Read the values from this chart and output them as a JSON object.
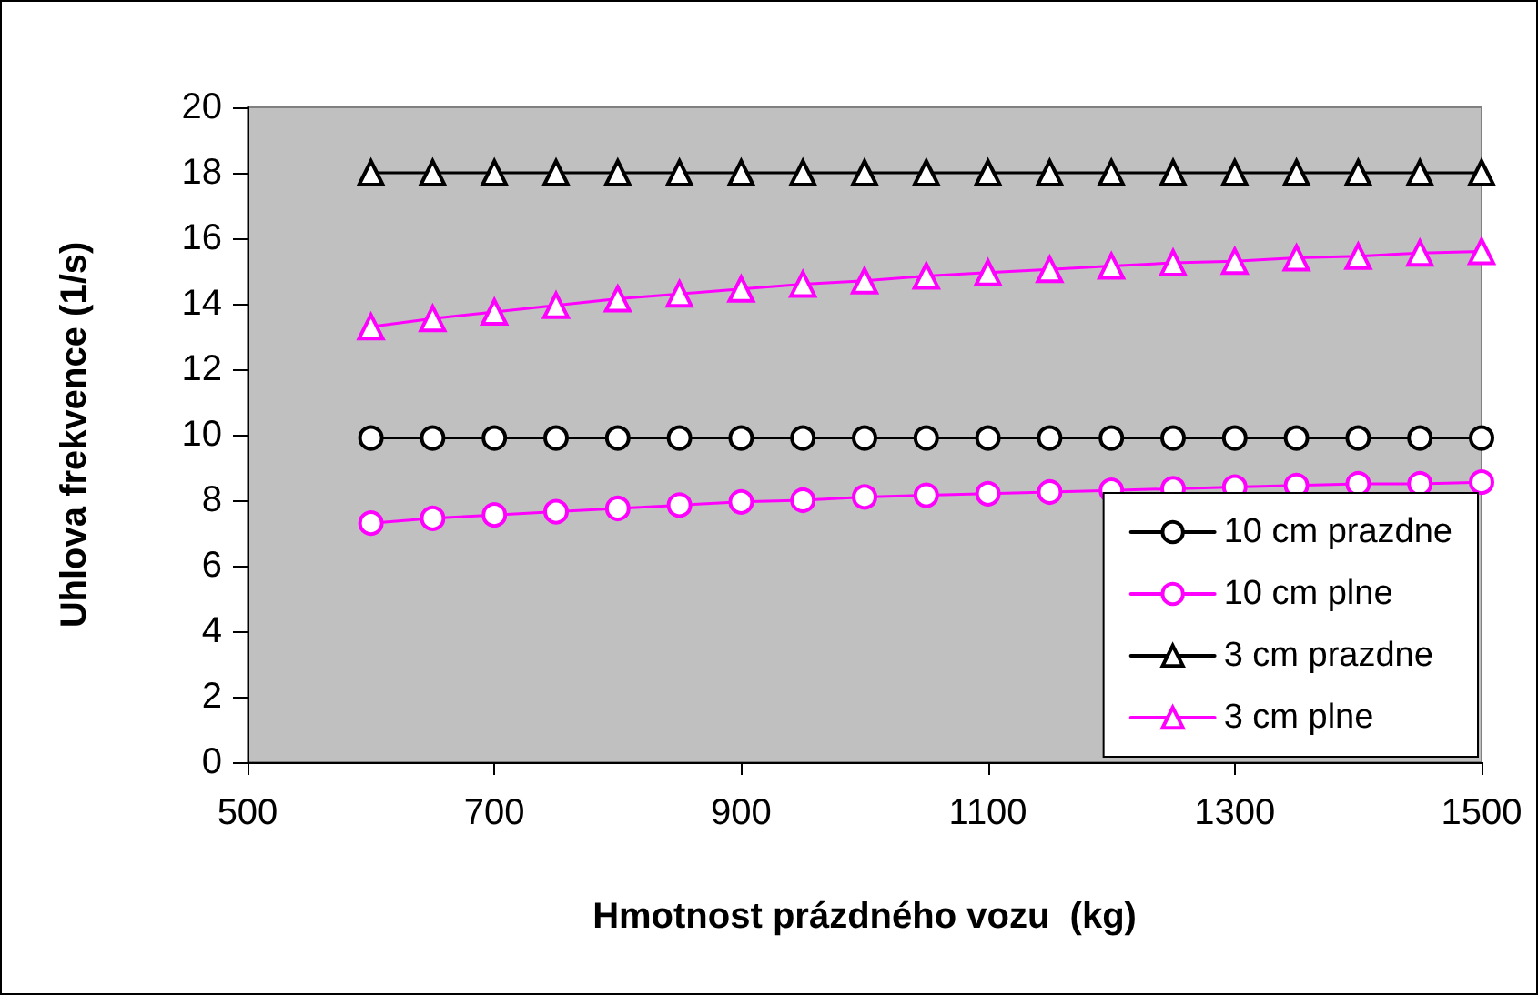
{
  "chart_data": {
    "type": "line",
    "xlabel": "Hmotnost prázdného vozu  (kg)",
    "ylabel": "Uhlova frekvence (1/s)",
    "x": [
      600,
      650,
      700,
      750,
      800,
      850,
      900,
      950,
      1000,
      1050,
      1100,
      1150,
      1200,
      1250,
      1300,
      1350,
      1400,
      1450,
      1500
    ],
    "series": [
      {
        "name": "10 cm prazdne",
        "color": "#000000",
        "marker": "circle",
        "values": [
          9.9,
          9.9,
          9.9,
          9.9,
          9.9,
          9.9,
          9.9,
          9.9,
          9.9,
          9.9,
          9.9,
          9.9,
          9.9,
          9.9,
          9.9,
          9.9,
          9.9,
          9.9,
          9.9
        ]
      },
      {
        "name": "10 cm plne",
        "color": "#ff00ff",
        "marker": "circle",
        "values": [
          7.3,
          7.45,
          7.55,
          7.65,
          7.75,
          7.85,
          7.95,
          8.0,
          8.1,
          8.15,
          8.2,
          8.25,
          8.3,
          8.35,
          8.4,
          8.45,
          8.5,
          8.5,
          8.55
        ]
      },
      {
        "name": "3 cm prazdne",
        "color": "#000000",
        "marker": "triangle",
        "values": [
          18,
          18,
          18,
          18,
          18,
          18,
          18,
          18,
          18,
          18,
          18,
          18,
          18,
          18,
          18,
          18,
          18,
          18,
          18
        ]
      },
      {
        "name": "3 cm plne",
        "color": "#ff00ff",
        "marker": "triangle",
        "values": [
          13.3,
          13.55,
          13.75,
          13.95,
          14.15,
          14.3,
          14.45,
          14.6,
          14.7,
          14.85,
          14.95,
          15.05,
          15.15,
          15.25,
          15.3,
          15.4,
          15.45,
          15.55,
          15.6
        ]
      }
    ],
    "xlim": [
      500,
      1500
    ],
    "xticks": [
      500,
      700,
      900,
      1100,
      1300,
      1500
    ],
    "ylim": [
      0,
      20
    ],
    "yticks": [
      0,
      2,
      4,
      6,
      8,
      10,
      12,
      14,
      16,
      18,
      20
    ],
    "grid": false,
    "legend": "bottom right",
    "line_style": "solid"
  }
}
